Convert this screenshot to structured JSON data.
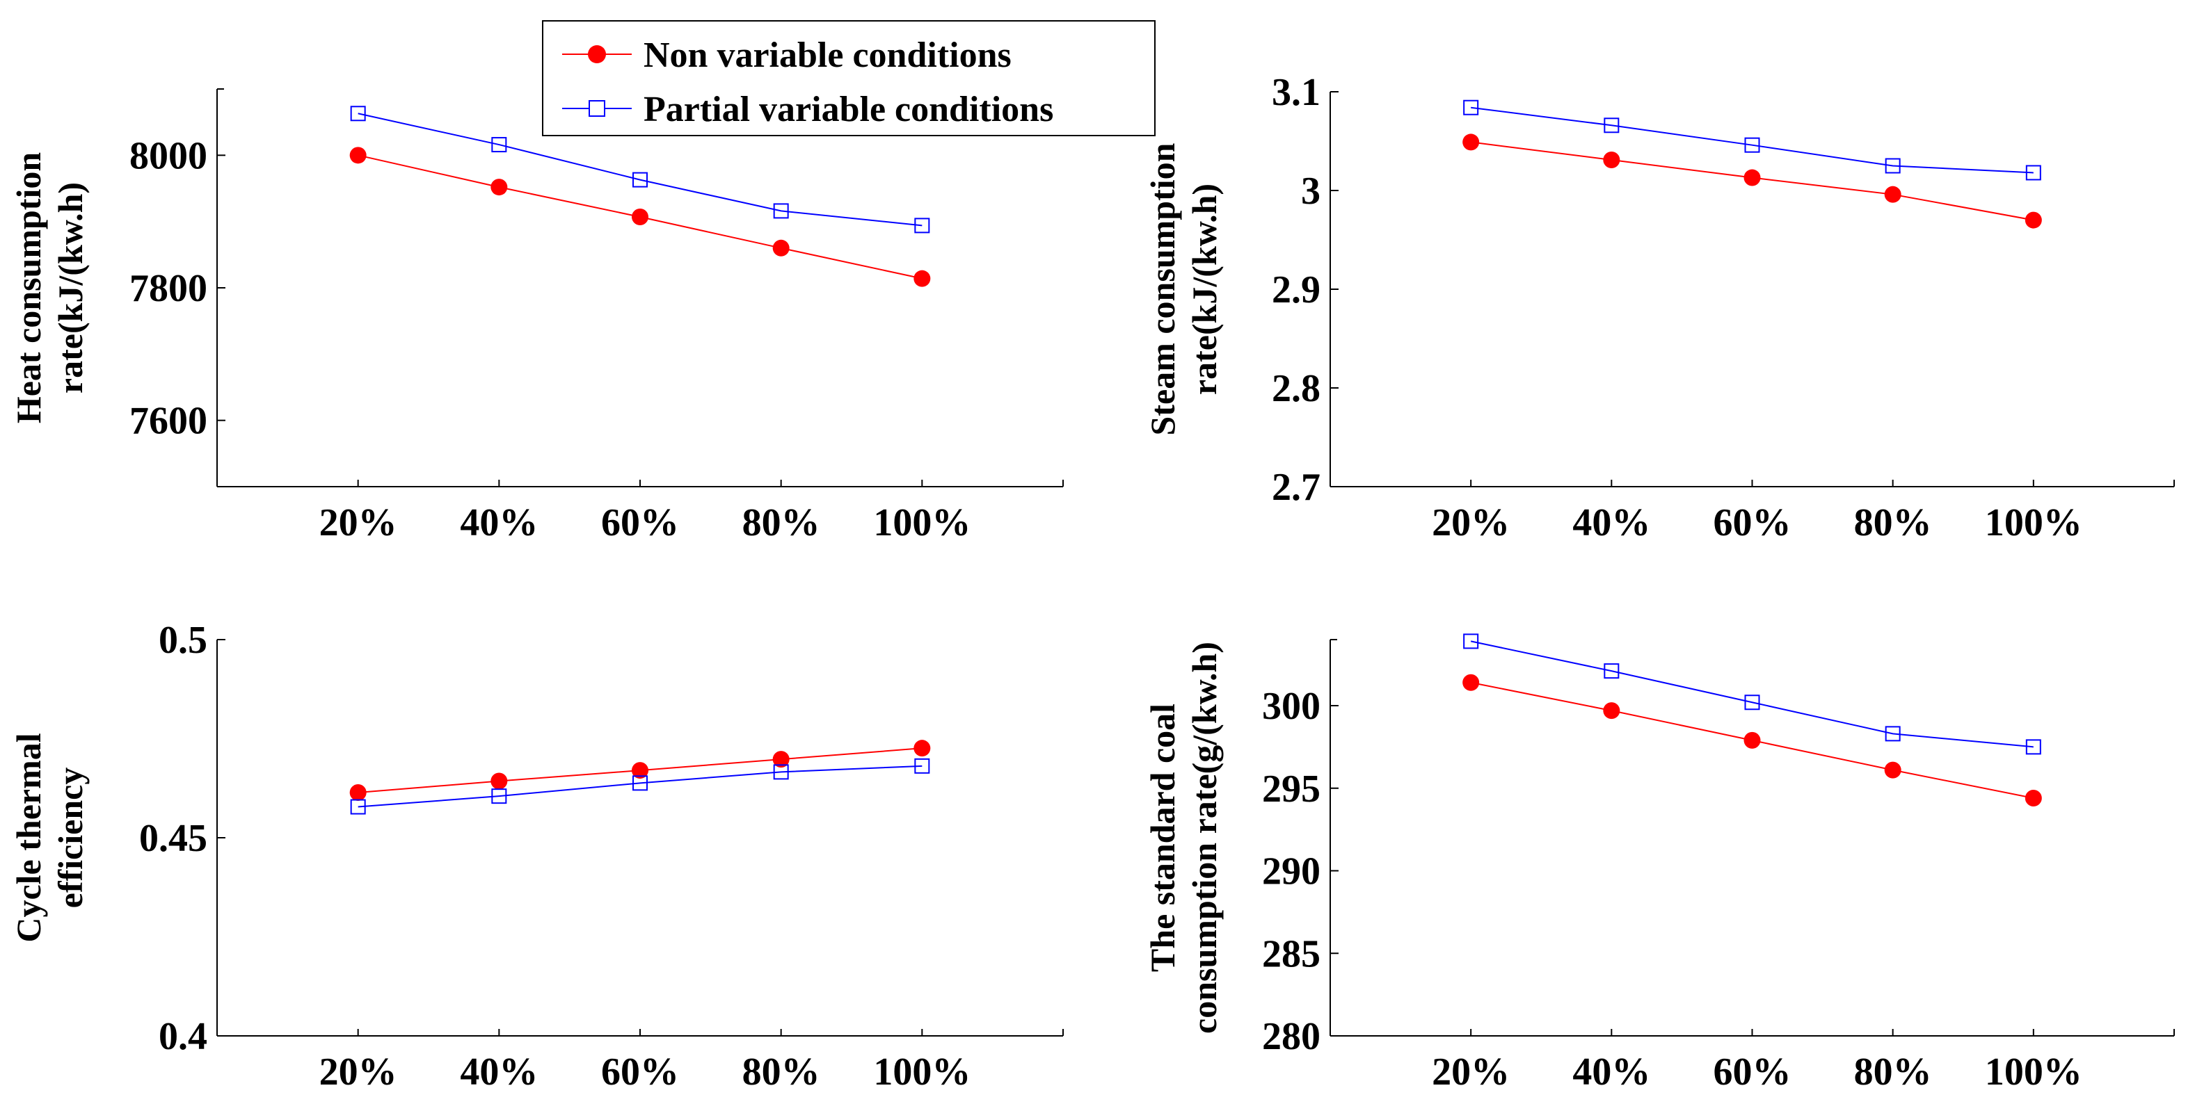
{
  "legend": {
    "entries": [
      "Non variable conditions",
      "Partial variable conditions"
    ],
    "placement": "top-center"
  },
  "colors": {
    "non_variable": "#ff0000",
    "partial_variable": "#0000ff",
    "axis": "#000000"
  },
  "chart_data": [
    {
      "type": "line",
      "categories": [
        "20%",
        "40%",
        "60%",
        "80%",
        "100%"
      ],
      "x": [
        1,
        2,
        3,
        4,
        5
      ],
      "xlim": [
        0,
        6
      ],
      "ylabel": [
        "Heat consumption",
        "rate(kJ/(kw.h)"
      ],
      "ylim": [
        7500,
        8100
      ],
      "yticks": [
        7600,
        7800,
        8000
      ],
      "ytick_labels": [
        "7600",
        "7800",
        "8000"
      ],
      "series": [
        {
          "name": "Non variable conditions",
          "marker": "filled-circle",
          "values": [
            8000,
            7952,
            7907,
            7860,
            7814
          ]
        },
        {
          "name": "Partial variable conditions",
          "marker": "open-square",
          "values": [
            8063,
            8016,
            7963,
            7916,
            7894
          ]
        }
      ]
    },
    {
      "type": "line",
      "categories": [
        "20%",
        "40%",
        "60%",
        "80%",
        "100%"
      ],
      "x": [
        1,
        2,
        3,
        4,
        5
      ],
      "xlim": [
        0,
        6
      ],
      "ylabel": [
        "Steam consumption",
        "rate(kJ/(kw.h)"
      ],
      "ylim": [
        2.7,
        3.1
      ],
      "yticks": [
        2.7,
        2.8,
        2.9,
        3.0,
        3.1
      ],
      "ytick_labels": [
        "2.7",
        "2.8",
        "2.9",
        "3",
        "3.1"
      ],
      "series": [
        {
          "name": "Non variable conditions",
          "marker": "filled-circle",
          "values": [
            3.049,
            3.031,
            3.013,
            2.996,
            2.97
          ]
        },
        {
          "name": "Partial variable conditions",
          "marker": "open-square",
          "values": [
            3.084,
            3.066,
            3.046,
            3.025,
            3.018
          ]
        }
      ]
    },
    {
      "type": "line",
      "categories": [
        "20%",
        "40%",
        "60%",
        "80%",
        "100%"
      ],
      "x": [
        1,
        2,
        3,
        4,
        5
      ],
      "xlim": [
        0,
        6
      ],
      "ylabel": [
        "Cycle thermal",
        "efficiency"
      ],
      "ylim": [
        0.4,
        0.5
      ],
      "yticks": [
        0.4,
        0.45,
        0.5
      ],
      "ytick_labels": [
        "0.4",
        "0.45",
        "0.5"
      ],
      "series": [
        {
          "name": "Non variable conditions",
          "marker": "filled-circle",
          "values": [
            0.4614,
            0.4643,
            0.467,
            0.4698,
            0.4726
          ]
        },
        {
          "name": "Partial variable conditions",
          "marker": "open-square",
          "values": [
            0.4578,
            0.4605,
            0.4638,
            0.4666,
            0.4681
          ]
        }
      ]
    },
    {
      "type": "line",
      "categories": [
        "20%",
        "40%",
        "60%",
        "80%",
        "100%"
      ],
      "x": [
        1,
        2,
        3,
        4,
        5
      ],
      "xlim": [
        0,
        6
      ],
      "ylabel": [
        "The standard coal",
        "consumption rate(g/(kw.h)"
      ],
      "ylim": [
        280,
        304
      ],
      "yticks": [
        280,
        285,
        290,
        295,
        300
      ],
      "ytick_labels": [
        "280",
        "285",
        "290",
        "295",
        "300"
      ],
      "series": [
        {
          "name": "Non variable conditions",
          "marker": "filled-circle",
          "values": [
            301.4,
            299.7,
            297.9,
            296.1,
            294.4
          ]
        },
        {
          "name": "Partial variable conditions",
          "marker": "open-square",
          "values": [
            303.9,
            302.1,
            300.2,
            298.3,
            297.5
          ]
        }
      ]
    }
  ]
}
